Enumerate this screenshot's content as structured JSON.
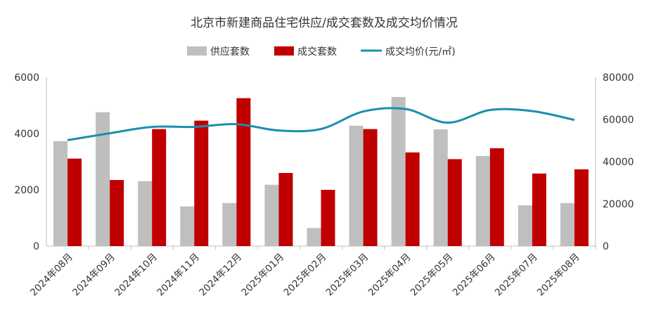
{
  "chart_data": {
    "type": "bar",
    "title": "北京市新建商品住宅供应/成交套数及成交均价情况",
    "categories": [
      "2024年08月",
      "2024年09月",
      "2024年10月",
      "2024年11月",
      "2024年12月",
      "2025年01月",
      "2025年02月",
      "2025年03月",
      "2025年04月",
      "2025年05月",
      "2025年06月",
      "2025年07月",
      "2025年08月"
    ],
    "series": [
      {
        "name": "供应套数",
        "type": "bar",
        "axis": "left",
        "color": "#bfbfbf",
        "values": [
          3730,
          4760,
          2310,
          1410,
          1530,
          2180,
          640,
          4280,
          5300,
          4150,
          3200,
          1450,
          1530
        ]
      },
      {
        "name": "成交套数",
        "type": "bar",
        "axis": "left",
        "color": "#c00000",
        "values": [
          3110,
          2350,
          4160,
          4460,
          5260,
          2600,
          2000,
          4160,
          3330,
          3090,
          3480,
          2580,
          2730
        ]
      },
      {
        "name": "成交均价(元/㎡)",
        "type": "line",
        "axis": "right",
        "color": "#1a8fb0",
        "values": [
          50200,
          53500,
          56500,
          56500,
          57800,
          54800,
          55500,
          63800,
          65000,
          58500,
          64500,
          64000,
          59800
        ]
      }
    ],
    "y_left": {
      "min": 0,
      "max": 6000,
      "ticks": [
        0,
        2000,
        4000,
        6000
      ]
    },
    "y_right": {
      "min": 0,
      "max": 80000,
      "ticks": [
        0,
        20000,
        40000,
        60000,
        80000
      ]
    },
    "legend_position": "top-center",
    "grid": false
  }
}
